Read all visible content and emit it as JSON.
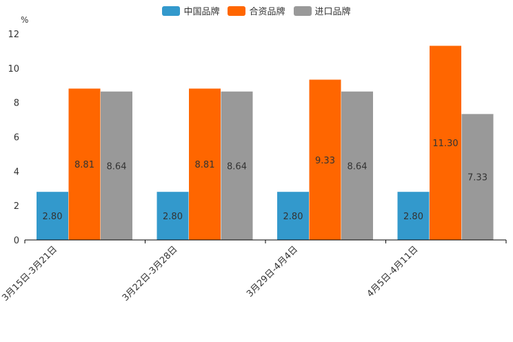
{
  "colors": {
    "china": "#3399cc",
    "joint": "#ff6600",
    "import": "#999999",
    "axis": "#000000",
    "text": "#333333"
  },
  "chart_data": {
    "type": "bar",
    "unit": "%",
    "categories": [
      "3月15日-3月21日",
      "3月22日-3月28日",
      "3月29日-4月4日",
      "4月5日-4月11日"
    ],
    "series": [
      {
        "name": "中国品牌",
        "values": [
          2.8,
          2.8,
          2.8,
          2.8
        ],
        "labels": [
          "2.80",
          "2.80",
          "2.80",
          "2.80"
        ]
      },
      {
        "name": "合资品牌",
        "values": [
          8.81,
          8.81,
          9.33,
          11.3
        ],
        "labels": [
          "8.81",
          "8.81",
          "9.33",
          "11.30"
        ]
      },
      {
        "name": "进口品牌",
        "values": [
          8.64,
          8.64,
          8.64,
          7.33
        ],
        "labels": [
          "8.64",
          "8.64",
          "8.64",
          "7.33"
        ]
      }
    ],
    "ylim": [
      0,
      12
    ],
    "yticks": [
      "0",
      "2",
      "4",
      "6",
      "8",
      "10",
      "12"
    ],
    "legend_position": "top-center",
    "grid": false
  }
}
